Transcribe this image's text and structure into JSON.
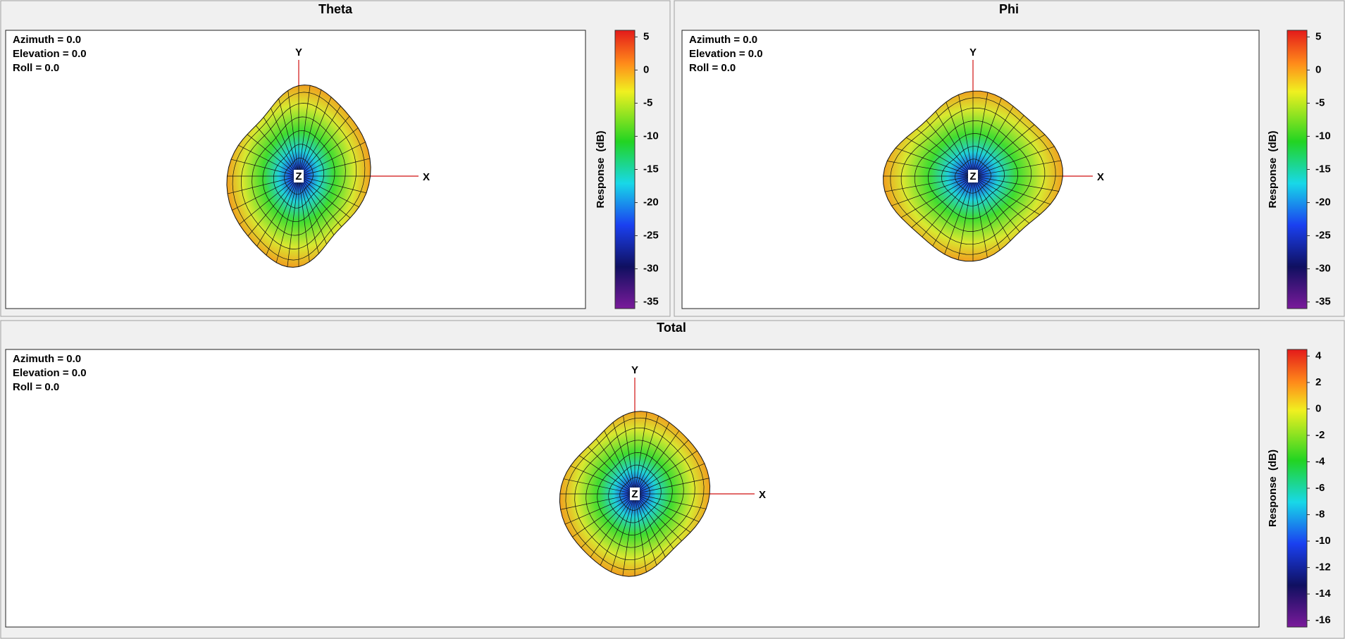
{
  "panels": [
    {
      "title": "Theta",
      "labels": [
        "Azimuth = 0.0",
        "Elevation = 0.0",
        "Roll = 0.0"
      ],
      "axes": [
        "X",
        "Y",
        "Z"
      ],
      "colorbar": {
        "label": "Response  (dB)",
        "clim": [
          -36,
          6
        ],
        "ticks": [
          5,
          0,
          -5,
          -10,
          -15,
          -20,
          -25,
          -30,
          -35
        ]
      }
    },
    {
      "title": "Phi",
      "labels": [
        "Azimuth = 0.0",
        "Elevation = 0.0",
        "Roll = 0.0"
      ],
      "axes": [
        "X",
        "Y",
        "Z"
      ],
      "colorbar": {
        "label": "Response  (dB)",
        "clim": [
          -36,
          6
        ],
        "ticks": [
          5,
          0,
          -5,
          -10,
          -15,
          -20,
          -25,
          -30,
          -35
        ]
      }
    },
    {
      "title": "Total",
      "labels": [
        "Azimuth = 0.0",
        "Elevation = 0.0",
        "Roll = 0.0"
      ],
      "axes": [
        "X",
        "Y",
        "Z"
      ],
      "colorbar": {
        "label": "Response  (dB)",
        "clim": [
          -16.5,
          4.5
        ],
        "ticks": [
          4,
          2,
          0,
          -2,
          -4,
          -6,
          -8,
          -10,
          -12,
          -14,
          -16
        ]
      }
    }
  ]
}
